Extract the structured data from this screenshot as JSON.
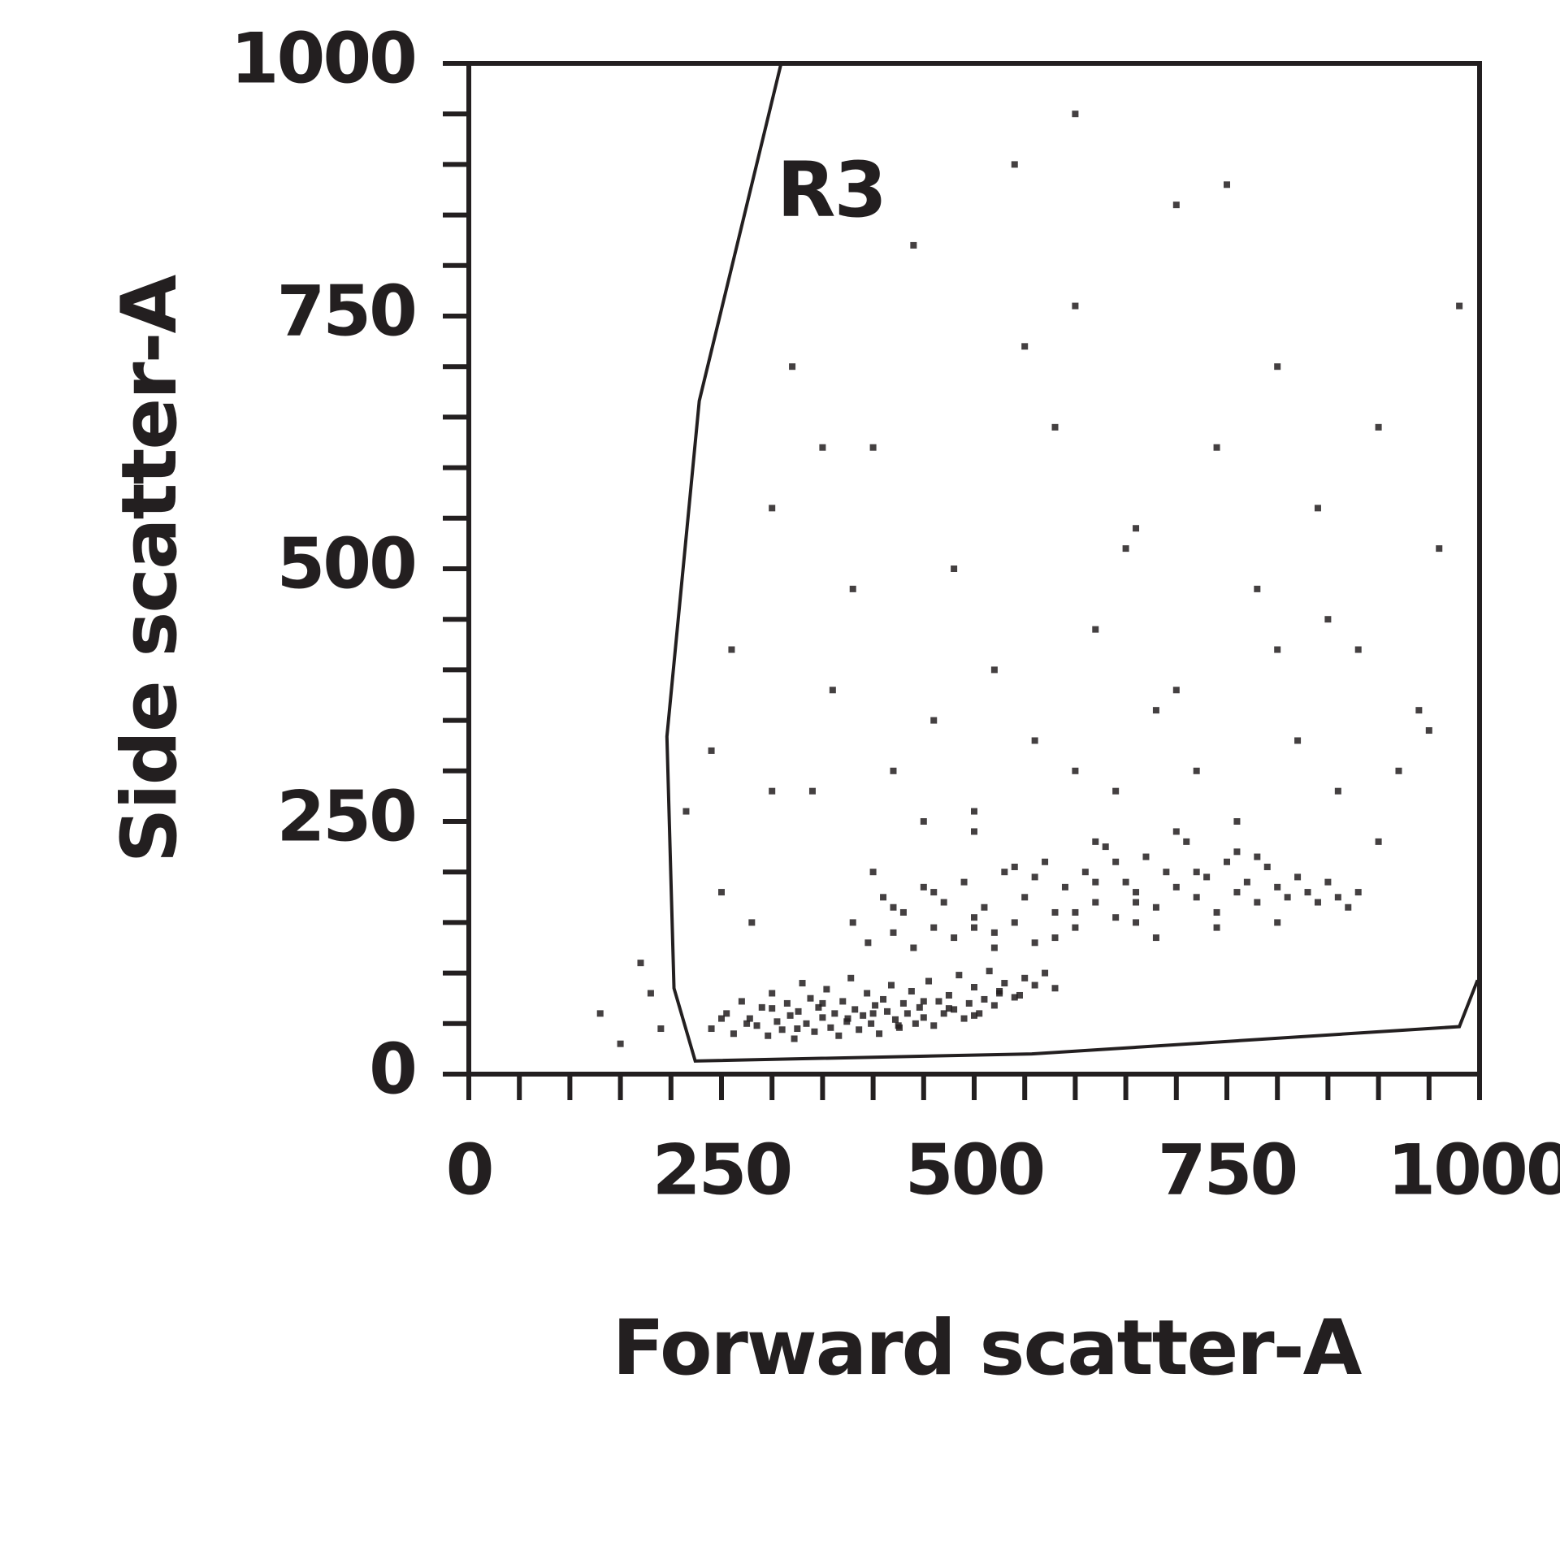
{
  "chart_data": {
    "type": "scatter",
    "x_label": "Forward scatter-A",
    "y_label": "Side scatter-A",
    "color": "#231f20",
    "xlim": [
      0,
      1000
    ],
    "ylim": [
      0,
      1000
    ],
    "xticks": [
      0,
      250,
      500,
      750,
      1000
    ],
    "yticks": [
      0,
      250,
      500,
      750,
      1000
    ],
    "xminorticks": [
      50,
      100,
      150,
      200,
      300,
      350,
      400,
      450,
      550,
      600,
      650,
      700,
      800,
      850,
      900,
      950
    ],
    "yminorticks": [
      50,
      100,
      150,
      200,
      300,
      350,
      400,
      450,
      550,
      600,
      650,
      700,
      800,
      850,
      900,
      950
    ],
    "gate": {
      "label": "R3",
      "x": [
        309,
        228,
        196,
        203,
        224,
        557,
        980,
        998
      ],
      "y": [
        1000,
        666,
        334,
        85,
        13,
        20,
        47,
        93
      ]
    },
    "x": [
      240,
      255,
      262,
      270,
      278,
      285,
      290,
      296,
      300,
      305,
      310,
      315,
      318,
      322,
      326,
      330,
      334,
      338,
      342,
      346,
      350,
      354,
      358,
      362,
      366,
      370,
      374,
      378,
      382,
      386,
      390,
      394,
      398,
      402,
      406,
      410,
      414,
      418,
      422,
      426,
      430,
      434,
      438,
      442,
      446,
      450,
      455,
      460,
      465,
      470,
      475,
      480,
      485,
      490,
      495,
      500,
      505,
      510,
      515,
      520,
      525,
      530,
      540,
      550,
      560,
      570,
      580,
      250,
      275,
      300,
      325,
      350,
      375,
      400,
      425,
      450,
      475,
      500,
      525,
      545,
      380,
      395,
      410,
      420,
      430,
      440,
      450,
      460,
      470,
      480,
      490,
      500,
      510,
      520,
      530,
      540,
      550,
      560,
      570,
      580,
      590,
      600,
      610,
      620,
      630,
      640,
      650,
      660,
      670,
      680,
      690,
      700,
      710,
      720,
      730,
      740,
      750,
      760,
      770,
      780,
      790,
      800,
      810,
      820,
      830,
      840,
      850,
      860,
      870,
      880,
      420,
      460,
      500,
      540,
      580,
      620,
      660,
      700,
      740,
      780,
      520,
      560,
      600,
      640,
      680,
      720,
      760,
      800,
      620,
      660,
      130,
      150,
      170,
      180,
      190,
      215,
      240,
      260,
      280,
      300,
      320,
      340,
      360,
      380,
      400,
      420,
      440,
      460,
      480,
      500,
      520,
      540,
      560,
      580,
      600,
      620,
      640,
      660,
      680,
      700,
      720,
      740,
      760,
      780,
      800,
      820,
      840,
      860,
      880,
      900,
      920,
      940,
      960,
      980,
      350,
      450,
      550,
      650,
      750,
      850,
      950,
      300,
      400,
      500,
      600,
      700,
      800,
      900,
      250,
      600
    ],
    "values": [
      45,
      60,
      40,
      72,
      55,
      48,
      66,
      38,
      80,
      52,
      44,
      70,
      58,
      35,
      62,
      90,
      50,
      75,
      42,
      66,
      56,
      84,
      46,
      60,
      38,
      72,
      52,
      95,
      64,
      44,
      58,
      80,
      50,
      68,
      40,
      74,
      62,
      88,
      54,
      46,
      70,
      60,
      82,
      50,
      66,
      56,
      92,
      48,
      72,
      60,
      78,
      64,
      98,
      55,
      70,
      86,
      60,
      74,
      102,
      68,
      80,
      90,
      76,
      95,
      88,
      100,
      85,
      55,
      50,
      65,
      45,
      70,
      55,
      60,
      48,
      72,
      65,
      58,
      82,
      78,
      150,
      130,
      175,
      140,
      160,
      125,
      185,
      145,
      170,
      135,
      190,
      155,
      165,
      140,
      200,
      150,
      175,
      130,
      210,
      160,
      185,
      145,
      200,
      170,
      225,
      155,
      190,
      180,
      215,
      165,
      200,
      185,
      230,
      175,
      195,
      160,
      210,
      180,
      190,
      170,
      205,
      185,
      175,
      195,
      180,
      170,
      190,
      175,
      165,
      180,
      165,
      180,
      145,
      205,
      135,
      230,
      150,
      240,
      145,
      215,
      125,
      195,
      160,
      210,
      135,
      200,
      220,
      150,
      190,
      170,
      60,
      30,
      110,
      80,
      45,
      260,
      320,
      420,
      150,
      560,
      700,
      280,
      380,
      480,
      620,
      300,
      820,
      350,
      500,
      260,
      400,
      900,
      330,
      640,
      760,
      440,
      280,
      540,
      360,
      860,
      300,
      620,
      250,
      480,
      700,
      330,
      560,
      280,
      420,
      640,
      300,
      360,
      520,
      760,
      620,
      250,
      720,
      520,
      880,
      450,
      340,
      280,
      200,
      240,
      950,
      380,
      420,
      230,
      180,
      300
    ]
  }
}
